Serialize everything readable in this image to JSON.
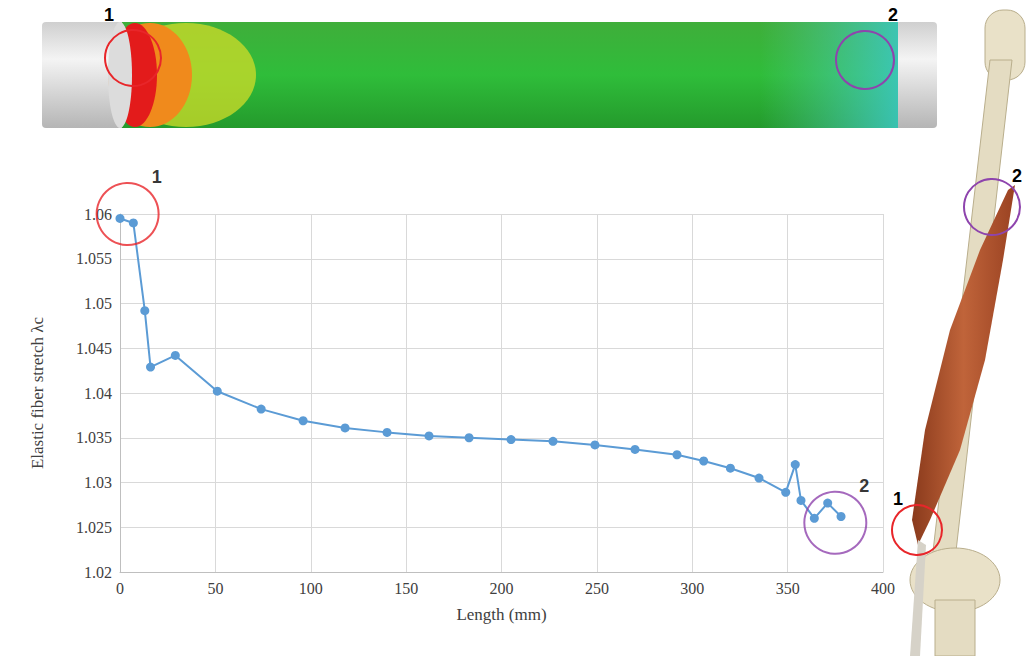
{
  "chart_data": {
    "type": "line",
    "y_label": "Elastic fiber stretch λc",
    "x_label": "Length (mm)",
    "x": [
      0,
      7,
      13,
      16,
      29,
      51,
      74,
      96,
      118,
      140,
      162,
      183,
      205,
      227,
      249,
      270,
      292,
      306,
      320,
      335,
      349,
      354,
      357,
      364,
      371,
      378
    ],
    "values": [
      1.0595,
      1.059,
      1.0492,
      1.0429,
      1.0442,
      1.0402,
      1.0382,
      1.0369,
      1.0361,
      1.0356,
      1.0352,
      1.035,
      1.0348,
      1.0346,
      1.0342,
      1.0337,
      1.0331,
      1.0324,
      1.0316,
      1.0305,
      1.0289,
      1.032,
      1.028,
      1.026,
      1.0277,
      1.0262
    ],
    "color": "#5b9bd5",
    "marker": "circle",
    "xlim": [
      0,
      400
    ],
    "xticks": [
      0,
      50,
      100,
      150,
      200,
      250,
      300,
      350,
      400
    ],
    "ylim": [
      1.02,
      1.06
    ],
    "yticks": [
      1.02,
      1.025,
      1.03,
      1.035,
      1.04,
      1.045,
      1.05,
      1.055,
      1.06
    ],
    "grid": true,
    "annotations": [
      {
        "text": "1",
        "x": 4,
        "y": 1.06,
        "color": "#e8262a"
      },
      {
        "text": "2",
        "x": 375,
        "y": 1.0255,
        "color": "#8e44ad"
      }
    ]
  },
  "illustration": {
    "tube_markers": [
      "1",
      "2"
    ],
    "leg_markers": [
      "1",
      "2"
    ]
  }
}
